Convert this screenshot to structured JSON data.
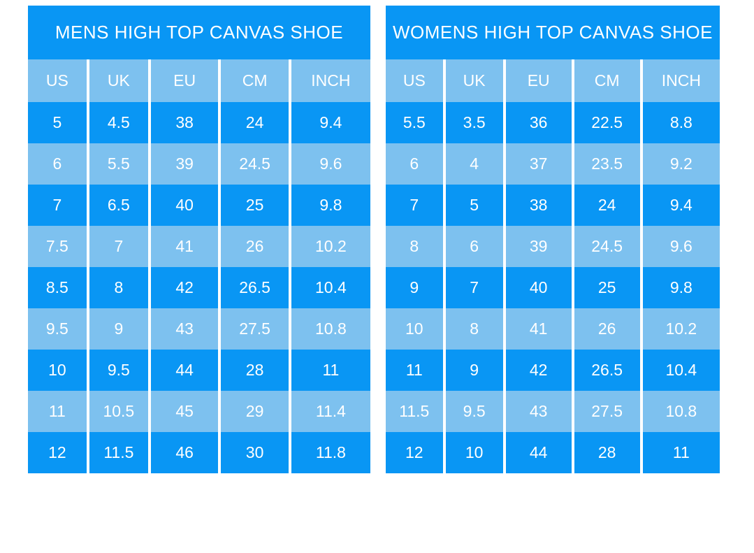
{
  "colors": {
    "row_dark_blue": "#0996f4",
    "row_light_blue": "#7dc1ef",
    "separator_white": "#ffffff",
    "text_white": "#ffffff",
    "page_background": "#ffffff"
  },
  "chart_data": [
    {
      "type": "table",
      "title": "MENS HIGH TOP CANVAS SHOE",
      "columns": [
        "US",
        "UK",
        "EU",
        "CM",
        "INCH"
      ],
      "rows": [
        [
          "5",
          "4.5",
          "38",
          "24",
          "9.4"
        ],
        [
          "6",
          "5.5",
          "39",
          "24.5",
          "9.6"
        ],
        [
          "7",
          "6.5",
          "40",
          "25",
          "9.8"
        ],
        [
          "7.5",
          "7",
          "41",
          "26",
          "10.2"
        ],
        [
          "8.5",
          "8",
          "42",
          "26.5",
          "10.4"
        ],
        [
          "9.5",
          "9",
          "43",
          "27.5",
          "10.8"
        ],
        [
          "10",
          "9.5",
          "44",
          "28",
          "11"
        ],
        [
          "11",
          "10.5",
          "45",
          "29",
          "11.4"
        ],
        [
          "12",
          "11.5",
          "46",
          "30",
          "11.8"
        ]
      ]
    },
    {
      "type": "table",
      "title": "WOMENS HIGH TOP CANVAS SHOE",
      "columns": [
        "US",
        "UK",
        "EU",
        "CM",
        "INCH"
      ],
      "rows": [
        [
          "5.5",
          "3.5",
          "36",
          "22.5",
          "8.8"
        ],
        [
          "6",
          "4",
          "37",
          "23.5",
          "9.2"
        ],
        [
          "7",
          "5",
          "38",
          "24",
          "9.4"
        ],
        [
          "8",
          "6",
          "39",
          "24.5",
          "9.6"
        ],
        [
          "9",
          "7",
          "40",
          "25",
          "9.8"
        ],
        [
          "10",
          "8",
          "41",
          "26",
          "10.2"
        ],
        [
          "11",
          "9",
          "42",
          "26.5",
          "10.4"
        ],
        [
          "11.5",
          "9.5",
          "43",
          "27.5",
          "10.8"
        ],
        [
          "12",
          "10",
          "44",
          "28",
          "11"
        ]
      ]
    }
  ]
}
